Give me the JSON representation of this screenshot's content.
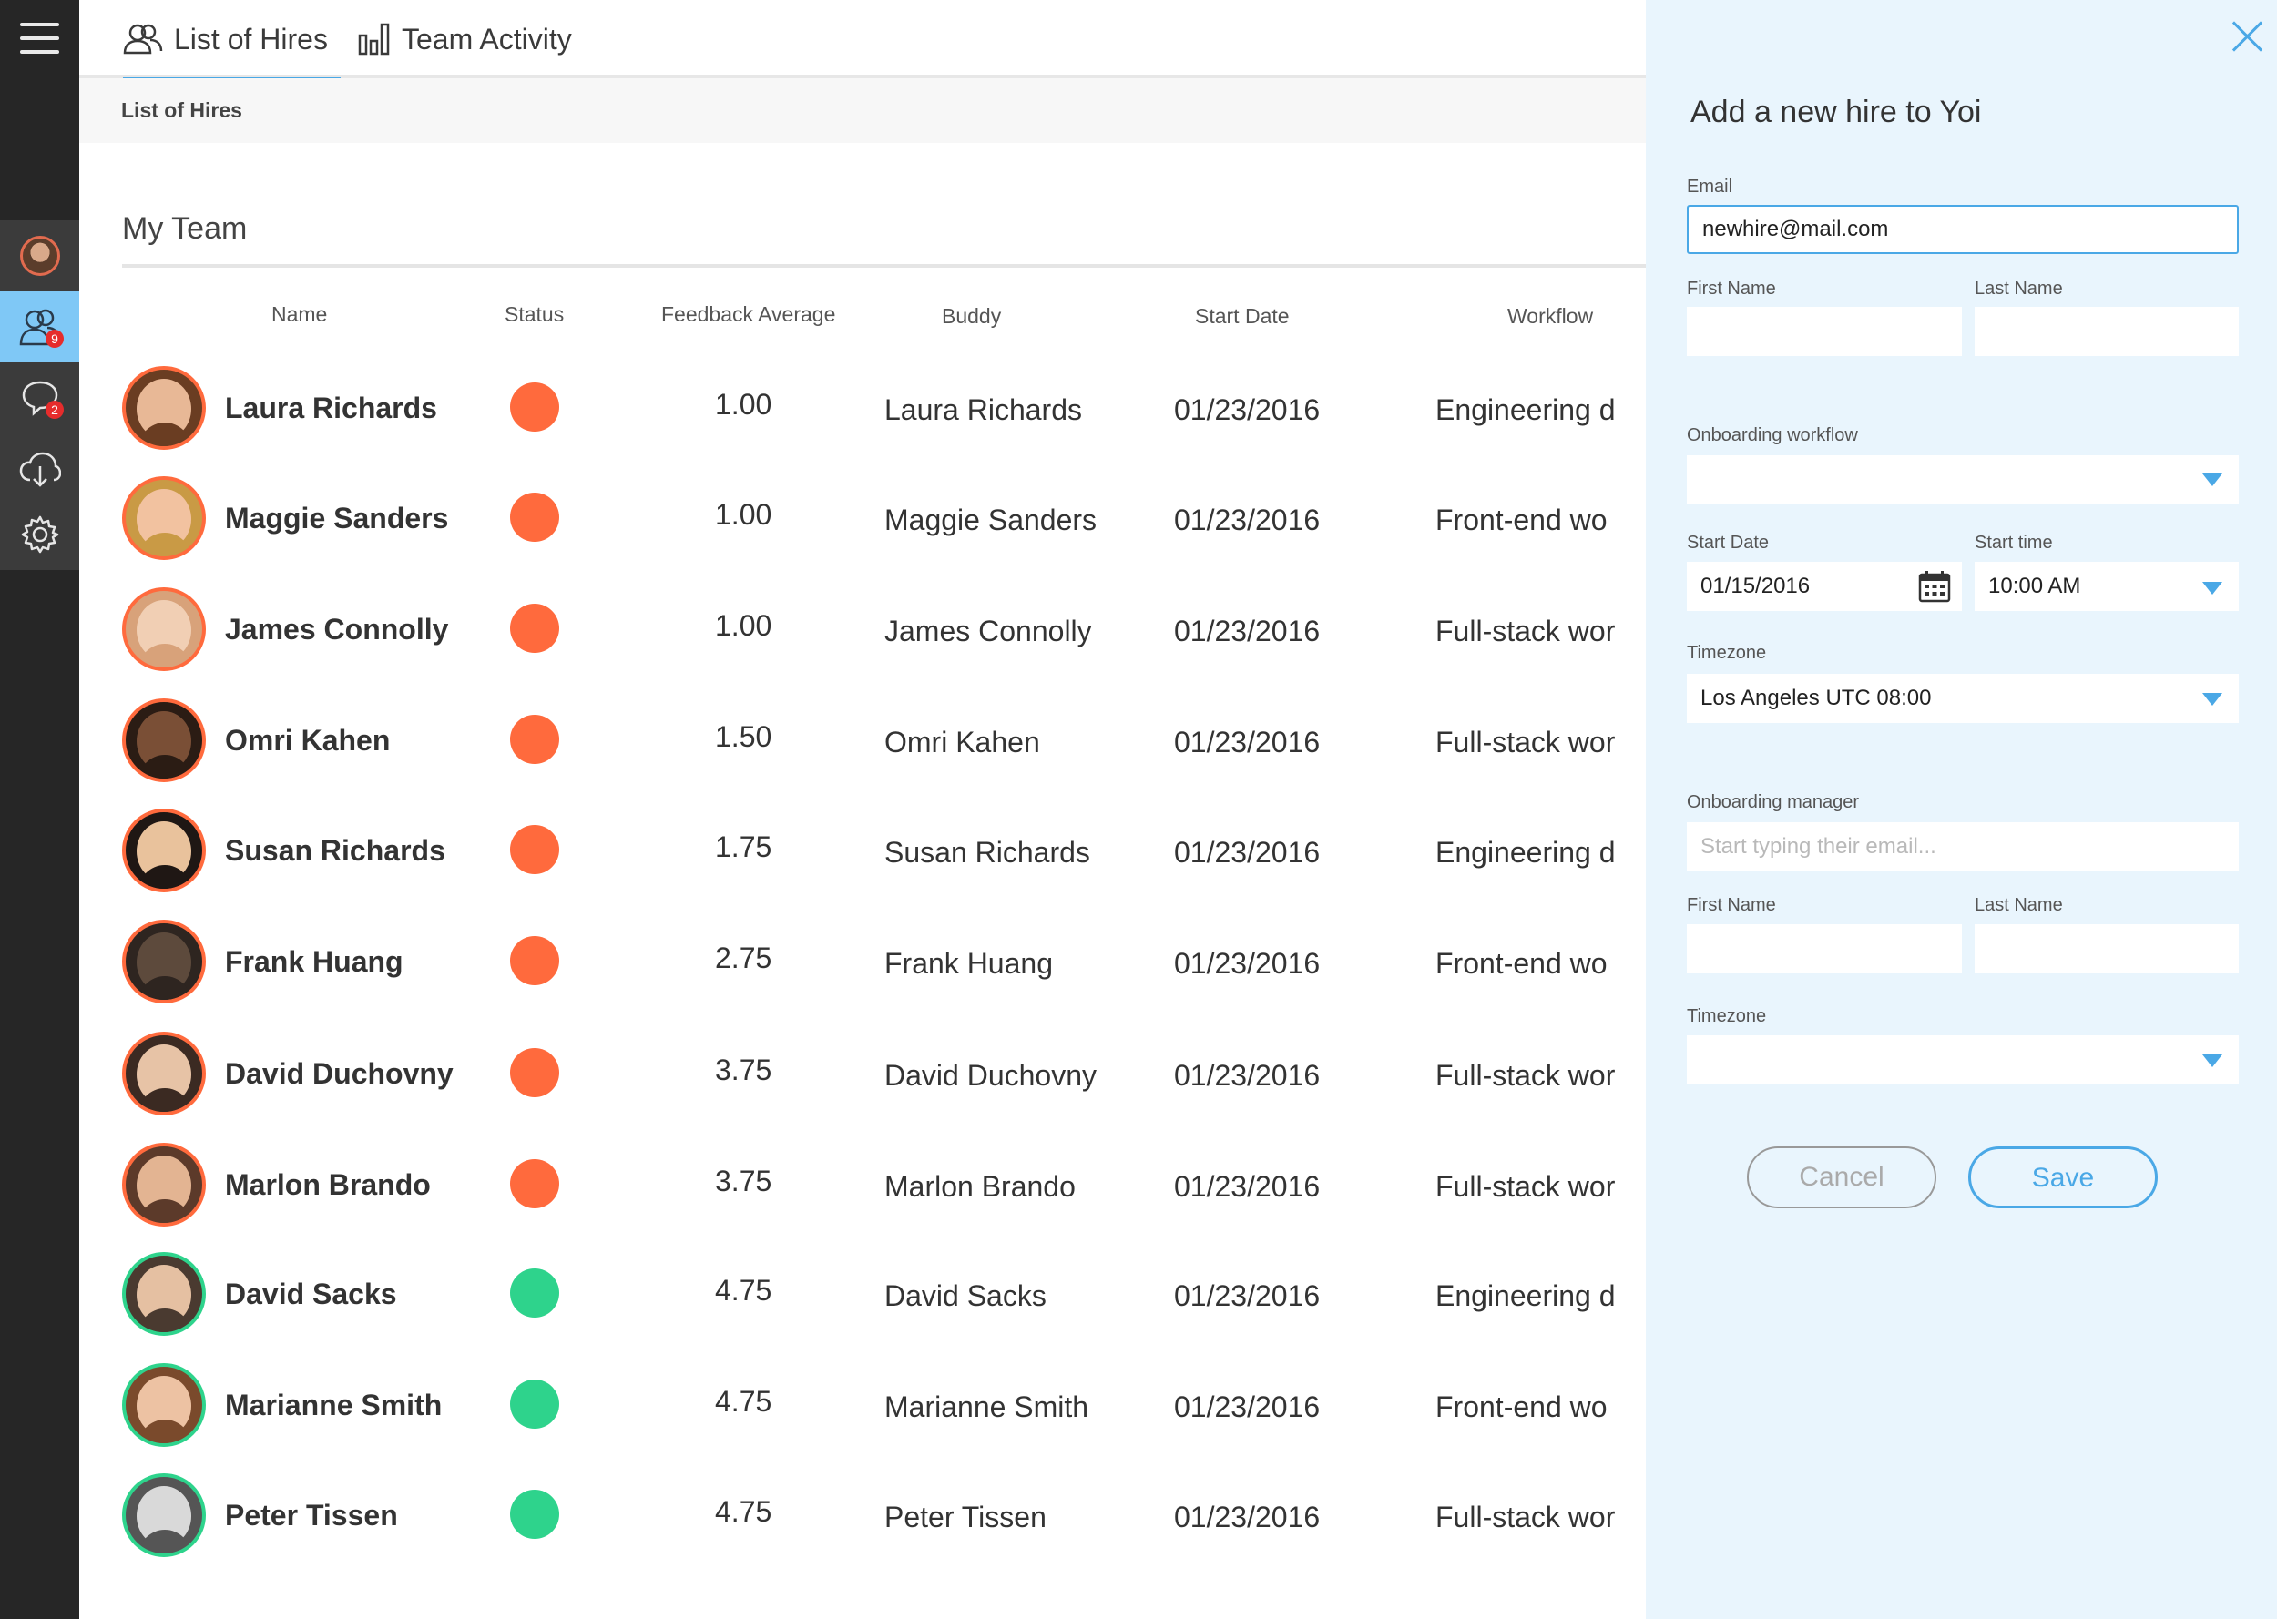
{
  "header": {
    "tabs": [
      {
        "label": "List of Hires",
        "icon": "users-icon",
        "active": true
      },
      {
        "label": "Team Activity",
        "icon": "bar-chart-icon",
        "active": false
      }
    ],
    "breadcrumb": "List of Hires"
  },
  "sidebar": {
    "items": [
      {
        "icon": "profile-avatar"
      },
      {
        "icon": "team-icon",
        "badge": "9",
        "active": true
      },
      {
        "icon": "chat-icon",
        "badge": "2"
      },
      {
        "icon": "cloud-download-icon"
      },
      {
        "icon": "settings-gear-icon"
      }
    ]
  },
  "main": {
    "section_title": "My Team",
    "columns": [
      "Name",
      "Status",
      "Feedback Average",
      "Buddy",
      "Start Date",
      "Workflow"
    ],
    "rows": [
      {
        "name": "Laura Richards",
        "status": "red",
        "feedback": "1.00",
        "buddy": "Laura Richards",
        "start": "01/23/2016",
        "workflow": "Engineering d"
      },
      {
        "name": "Maggie Sanders",
        "status": "red",
        "feedback": "1.00",
        "buddy": "Maggie Sanders",
        "start": "01/23/2016",
        "workflow": "Front-end wo"
      },
      {
        "name": "James Connolly",
        "status": "red",
        "feedback": "1.00",
        "buddy": "James Connolly",
        "start": "01/23/2016",
        "workflow": "Full-stack wor"
      },
      {
        "name": "Omri Kahen",
        "status": "red",
        "feedback": "1.50",
        "buddy": "Omri Kahen",
        "start": "01/23/2016",
        "workflow": "Full-stack wor"
      },
      {
        "name": "Susan Richards",
        "status": "red",
        "feedback": "1.75",
        "buddy": "Susan Richards",
        "start": "01/23/2016",
        "workflow": "Engineering d"
      },
      {
        "name": "Frank Huang",
        "status": "red",
        "feedback": "2.75",
        "buddy": "Frank Huang",
        "start": "01/23/2016",
        "workflow": "Front-end wo"
      },
      {
        "name": "David Duchovny",
        "status": "red",
        "feedback": "3.75",
        "buddy": "David Duchovny",
        "start": "01/23/2016",
        "workflow": "Full-stack wor"
      },
      {
        "name": "Marlon Brando",
        "status": "red",
        "feedback": "3.75",
        "buddy": "Marlon Brando",
        "start": "01/23/2016",
        "workflow": "Full-stack wor"
      },
      {
        "name": "David Sacks",
        "status": "green",
        "feedback": "4.75",
        "buddy": "David Sacks",
        "start": "01/23/2016",
        "workflow": "Engineering d"
      },
      {
        "name": "Marianne Smith",
        "status": "green",
        "feedback": "4.75",
        "buddy": "Marianne Smith",
        "start": "01/23/2016",
        "workflow": "Front-end wo"
      },
      {
        "name": "Peter Tissen",
        "status": "green",
        "feedback": "4.75",
        "buddy": "Peter Tissen",
        "start": "01/23/2016",
        "workflow": "Full-stack wor"
      }
    ]
  },
  "form": {
    "title": "Add a new hire to Yoi",
    "email_label": "Email",
    "email_value": "newhire@mail.com",
    "first_name_label": "First Name",
    "last_name_label": "Last Name",
    "workflow_label": "Onboarding workflow",
    "start_date_label": "Start Date",
    "start_date_value": "01/15/2016",
    "start_time_label": "Start time",
    "start_time_value": "10:00 AM",
    "timezone_label": "Timezone",
    "timezone_value": "Los Angeles UTC 08:00",
    "manager_label": "Onboarding manager",
    "manager_placeholder": "Start typing their email...",
    "manager_first_name_label": "First Name",
    "manager_last_name_label": "Last Name",
    "manager_timezone_label": "Timezone",
    "cancel_label": "Cancel",
    "save_label": "Save"
  },
  "colors": {
    "accent": "#4aa8e6",
    "status_red": "#ff6a3d",
    "status_green": "#2ed38c",
    "panel_bg": "#e9f5fd",
    "rail_bg": "#262626"
  }
}
